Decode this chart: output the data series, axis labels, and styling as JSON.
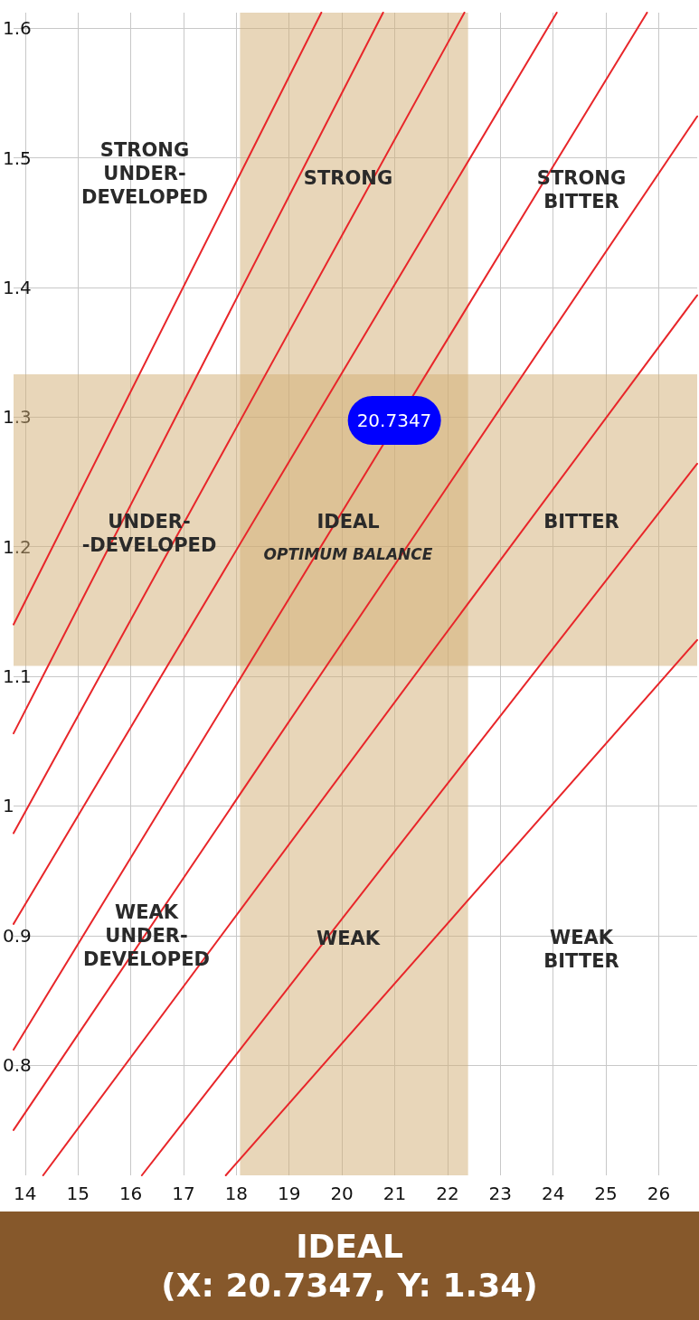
{
  "chart_data": {
    "type": "line",
    "xlim": [
      13.78,
      26.73
    ],
    "ylim": [
      0.715,
      1.612
    ],
    "xticks": [
      14,
      15,
      16,
      17,
      18,
      19,
      20,
      21,
      22,
      23,
      24,
      25,
      26
    ],
    "yticks": [
      0.8,
      0.9,
      1.0,
      1.1,
      1.2,
      1.3,
      1.4,
      1.5,
      1.6
    ],
    "grid": true,
    "marker": "none",
    "line_style": "solid",
    "series": [
      {
        "color": "#e8262a",
        "x": [
          13.78,
          19.61
        ],
        "values": [
          1.14,
          1.612
        ]
      },
      {
        "color": "#e8262a",
        "x": [
          13.78,
          20.78
        ],
        "values": [
          1.056,
          1.612
        ]
      },
      {
        "color": "#e8262a",
        "x": [
          13.78,
          22.32
        ],
        "values": [
          0.979,
          1.612
        ]
      },
      {
        "color": "#e8262a",
        "x": [
          13.78,
          24.07
        ],
        "values": [
          0.909,
          1.612
        ]
      },
      {
        "color": "#e8262a",
        "x": [
          13.78,
          25.78
        ],
        "values": [
          0.812,
          1.612
        ]
      },
      {
        "color": "#e8262a",
        "x": [
          13.78,
          26.73
        ],
        "values": [
          0.75,
          1.532
        ]
      },
      {
        "color": "#e8262a",
        "x": [
          14.34,
          26.73
        ],
        "values": [
          0.715,
          1.394
        ]
      },
      {
        "color": "#e8262a",
        "x": [
          16.21,
          26.73
        ],
        "values": [
          0.715,
          1.264
        ]
      },
      {
        "color": "#e8262a",
        "x": [
          17.8,
          26.73
        ],
        "values": [
          0.715,
          1.128
        ]
      }
    ],
    "bands": [
      {
        "axis": "x",
        "from": 18.07,
        "to": 22.39,
        "color": "#d2ad74"
      },
      {
        "axis": "y",
        "from": 1.108,
        "to": 1.333,
        "color": "#d2ad74"
      }
    ],
    "annotations": [
      "STRONG\nUNDER-\nDEVELOPED",
      "STRONG",
      "STRONG\nBITTER",
      "UNDER-\n-DEVELOPED",
      "IDEAL",
      "OPTIMUM BALANCE",
      "BITTER",
      "WEAK\nUNDER-\nDEVELOPED",
      "WEAK",
      "WEAK\nBITTER",
      "20.7347",
      "IDEAL",
      "(X: 20.7347, Y: 1.34)"
    ]
  }
}
